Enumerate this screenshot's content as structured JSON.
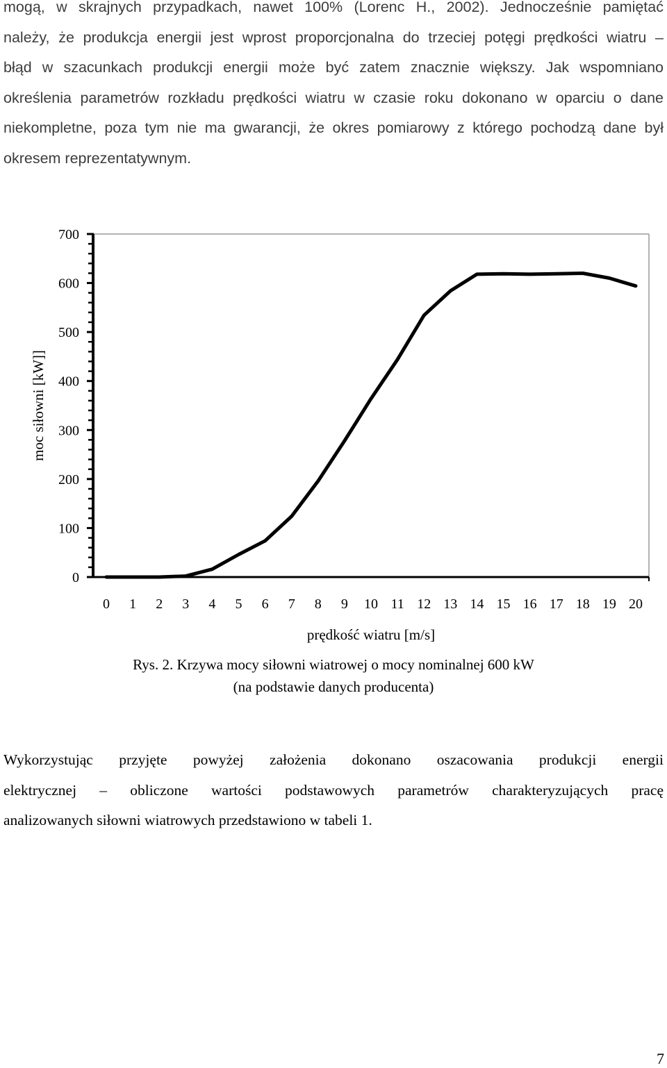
{
  "page": {
    "paragraph_top": [
      "mogą, w skrajnych przypadkach, nawet 100% (Lorenc H., 2002). Jednocześnie pamiętać",
      "należy, że produkcja energii jest wprost proporcjonalna do trzeciej potęgi prędkości wiatru –",
      "błąd w szacunkach produkcji energii może być zatem znacznie większy. Jak wspomniano",
      "określenia parametrów rozkładu prędkości wiatru w czasie roku dokonano w oparciu o dane",
      "niekompletne, poza tym nie ma gwarancji, że okres pomiarowy z którego pochodzą dane był",
      "okresem reprezentatywnym."
    ],
    "caption_line_1": "Rys. 2. Krzywa mocy siłowni wiatrowej o mocy nominalnej 600 kW",
    "caption_line_2": "(na podstawie danych producenta)",
    "paragraph_bottom": [
      "Wykorzystując przyjęte powyżej założenia dokonano oszacowania produkcji energii",
      "elektrycznej – obliczone wartości podstawowych parametrów charakteryzujących pracę",
      "analizowanych siłowni wiatrowych przedstawiono w tabeli 1."
    ],
    "page_number": "7"
  },
  "chart_data": {
    "type": "line",
    "title": "",
    "xlabel": "prędkość wiatru [m/s]",
    "ylabel": "moc siłowni [kW]]",
    "xlim": [
      0,
      20
    ],
    "ylim": [
      0,
      700
    ],
    "x_ticks": [
      "0",
      "1",
      "2",
      "3",
      "4",
      "5",
      "6",
      "7",
      "8",
      "9",
      "10",
      "11",
      "12",
      "13",
      "14",
      "15",
      "16",
      "17",
      "18",
      "19",
      "20"
    ],
    "y_ticks": [
      "0",
      "100",
      "200",
      "300",
      "400",
      "500",
      "600",
      "700"
    ],
    "y_minor_step": 20,
    "grid": false,
    "legend": "none",
    "line_color": "#000000",
    "series": [
      {
        "x": [
          0,
          1,
          2,
          3,
          4,
          5,
          6,
          7,
          8,
          9,
          10,
          11,
          12,
          13,
          14,
          15,
          16,
          17,
          18,
          19,
          20
        ],
        "y": [
          0,
          0,
          0,
          2,
          16,
          46,
          74,
          124,
          196,
          278,
          364,
          444,
          534,
          584,
          618,
          619,
          618,
          619,
          620,
          610,
          594
        ]
      }
    ]
  }
}
